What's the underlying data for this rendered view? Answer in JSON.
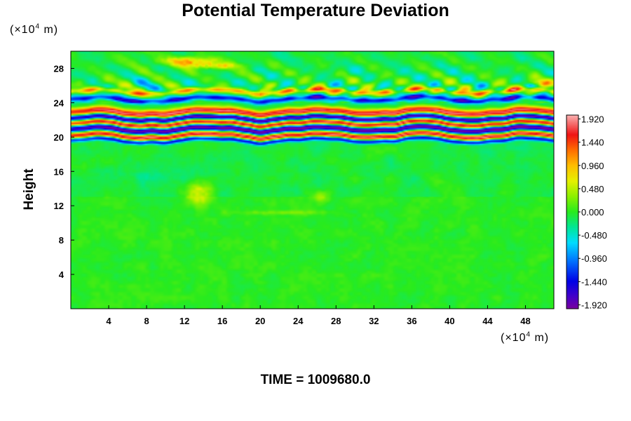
{
  "chart_data": {
    "type": "heatmap",
    "title": "Potential Temperature Deviation",
    "ylabel": "Height",
    "xlabel": "",
    "x_unit": {
      "prefix": "(×10",
      "exponent": "4",
      "suffix": " m)"
    },
    "y_unit": {
      "prefix": "(×10",
      "exponent": "4",
      "suffix": " m)"
    },
    "xlim": [
      0,
      51
    ],
    "ylim": [
      0,
      30
    ],
    "x_ticks": [
      4,
      8,
      12,
      16,
      20,
      24,
      28,
      32,
      36,
      40,
      44,
      48
    ],
    "x_tick_labels": [
      "4",
      "8",
      "12",
      "16",
      "20",
      "24",
      "28",
      "32",
      "36",
      "40",
      "44",
      "48"
    ],
    "y_ticks": [
      4,
      8,
      12,
      16,
      20,
      24,
      28
    ],
    "y_tick_labels": [
      "4",
      "8",
      "12",
      "16",
      "20",
      "24",
      "28"
    ],
    "colorbar": {
      "min": -2.0,
      "max": 2.0,
      "ticks": [
        1.92,
        1.44,
        0.96,
        0.48,
        0.0,
        -0.48,
        -0.96,
        -1.44,
        -1.92
      ],
      "tick_labels": [
        "1.920",
        "1.440",
        "0.960",
        "0.480",
        "0.000",
        "-0.480",
        "-0.960",
        "-1.440",
        "-1.920"
      ]
    },
    "field_features": [
      {
        "kind": "band",
        "y": 22.9,
        "width": 0.55,
        "value": 1.9
      },
      {
        "kind": "band",
        "y": 22.2,
        "width": 0.4,
        "value": -1.9
      },
      {
        "kind": "band",
        "y": 21.55,
        "width": 0.35,
        "value": 1.9
      },
      {
        "kind": "band",
        "y": 20.9,
        "width": 0.45,
        "value": -1.9
      },
      {
        "kind": "band",
        "y": 20.15,
        "width": 0.4,
        "value": 1.9
      },
      {
        "kind": "band",
        "y": 19.6,
        "width": 0.3,
        "value": -1.4
      },
      {
        "kind": "band",
        "y": 24.4,
        "width": 0.4,
        "value": -1.3
      },
      {
        "kind": "band",
        "y": 25.3,
        "width": 0.35,
        "value": 1.0
      },
      {
        "kind": "blob",
        "x": 12.5,
        "y": 28.8,
        "rx": 3.5,
        "ry": 0.6,
        "value": 1.3
      },
      {
        "kind": "blob",
        "x": 15.5,
        "y": 28.3,
        "rx": 3.0,
        "ry": 0.4,
        "value": 0.9
      },
      {
        "kind": "blob",
        "x": 49.5,
        "y": 26.3,
        "rx": 1.5,
        "ry": 0.4,
        "value": 1.0
      },
      {
        "kind": "blob",
        "x": 13.5,
        "y": 13.5,
        "rx": 1.5,
        "ry": 1.6,
        "value": 0.8
      },
      {
        "kind": "blob",
        "x": 26.5,
        "y": 13.0,
        "rx": 1.0,
        "ry": 0.8,
        "value": 0.5
      },
      {
        "kind": "blob",
        "x": 22.0,
        "y": 11.2,
        "rx": 5.0,
        "ry": 0.3,
        "value": 0.35
      },
      {
        "kind": "blob",
        "x": 8.0,
        "y": 15.5,
        "rx": 5.0,
        "ry": 1.2,
        "value": -0.2
      }
    ]
  },
  "footer": {
    "time_text": "TIME = 1009680.0"
  }
}
